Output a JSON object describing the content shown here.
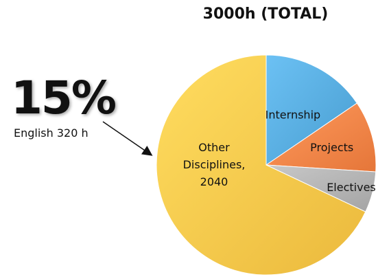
{
  "chart_data": {
    "type": "pie",
    "title": "3000h (TOTAL)",
    "slices": [
      {
        "label": "Internship",
        "value": 15.5,
        "color": "#5AAFE2"
      },
      {
        "label": "Projects",
        "value": 10.5,
        "color": "#F7884B"
      },
      {
        "label": "Electives",
        "value": 6.0,
        "color": "#B6B6B6"
      },
      {
        "label_lines": [
          "Other",
          "Disciplines,",
          "2040"
        ],
        "value": 68.0,
        "color": "#FDCB4E"
      }
    ],
    "start_angle_deg": 0,
    "direction": "clockwise",
    "legend": "none",
    "annotations": [
      {
        "big_text": "15%",
        "sub_text": "English 320 h",
        "points_to": "Other Disciplines, 2040"
      }
    ]
  }
}
